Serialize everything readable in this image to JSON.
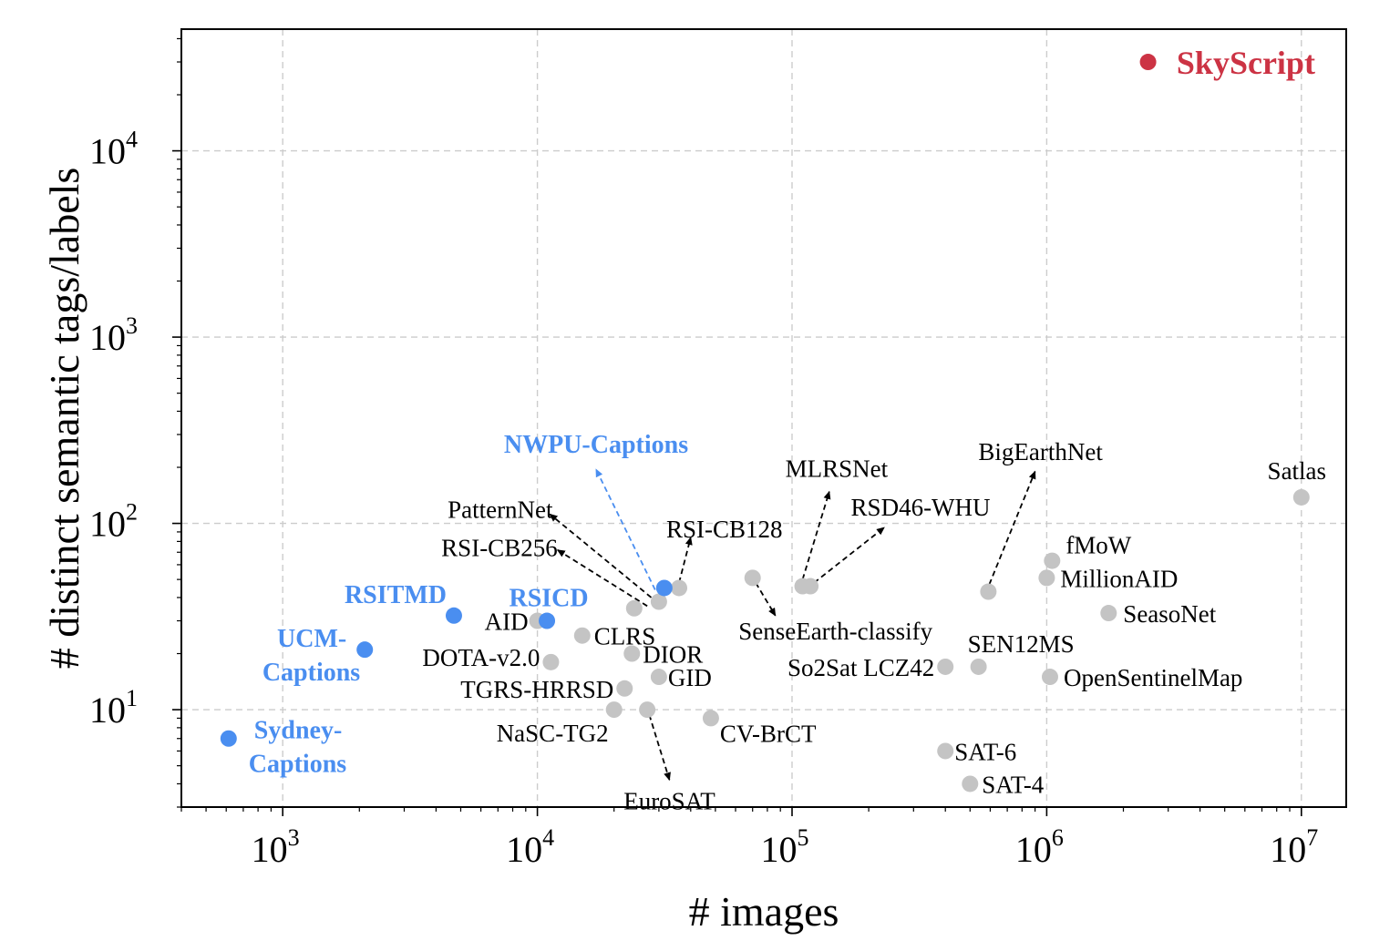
{
  "chart_data": {
    "type": "scatter",
    "title": "",
    "xlabel": "# images",
    "ylabel": "# distinct semantic tags/labels",
    "xscale": "log",
    "yscale": "log",
    "xlim": [
      400,
      15000000
    ],
    "ylim": [
      3,
      45000
    ],
    "grid": true,
    "x_ticks": [
      {
        "value": 1000,
        "base": "10",
        "exp": "3"
      },
      {
        "value": 10000,
        "base": "10",
        "exp": "4"
      },
      {
        "value": 100000,
        "base": "10",
        "exp": "5"
      },
      {
        "value": 1000000,
        "base": "10",
        "exp": "6"
      },
      {
        "value": 10000000,
        "base": "10",
        "exp": "7"
      }
    ],
    "y_ticks": [
      {
        "value": 10,
        "base": "10",
        "exp": "1"
      },
      {
        "value": 100,
        "base": "10",
        "exp": "2"
      },
      {
        "value": 1000,
        "base": "10",
        "exp": "3"
      },
      {
        "value": 10000,
        "base": "10",
        "exp": "4"
      }
    ],
    "colors": {
      "gray": "#c4c4c4",
      "blue": "#4a8ef0",
      "red": "#cc3344"
    },
    "points": [
      {
        "x": 2500000,
        "y": 30000,
        "group": "red"
      },
      {
        "x": 10000000,
        "y": 138,
        "group": "gray"
      },
      {
        "x": 1050000,
        "y": 63,
        "group": "gray"
      },
      {
        "x": 1000000,
        "y": 51,
        "group": "gray"
      },
      {
        "x": 1750000,
        "y": 33,
        "group": "gray"
      },
      {
        "x": 1030000,
        "y": 15,
        "group": "gray"
      },
      {
        "x": 590000,
        "y": 43,
        "group": "gray"
      },
      {
        "x": 540000,
        "y": 17,
        "group": "gray"
      },
      {
        "x": 400000,
        "y": 17,
        "group": "gray"
      },
      {
        "x": 400000,
        "y": 6,
        "group": "gray"
      },
      {
        "x": 500000,
        "y": 4,
        "group": "gray"
      },
      {
        "x": 110000,
        "y": 46,
        "group": "gray"
      },
      {
        "x": 118000,
        "y": 46,
        "group": "gray"
      },
      {
        "x": 70000,
        "y": 51,
        "group": "gray"
      },
      {
        "x": 48000,
        "y": 9,
        "group": "gray"
      },
      {
        "x": 36000,
        "y": 45,
        "group": "gray"
      },
      {
        "x": 30000,
        "y": 38,
        "group": "gray"
      },
      {
        "x": 24000,
        "y": 35,
        "group": "gray"
      },
      {
        "x": 15000,
        "y": 25,
        "group": "gray"
      },
      {
        "x": 23500,
        "y": 20,
        "group": "gray"
      },
      {
        "x": 30000,
        "y": 15,
        "group": "gray"
      },
      {
        "x": 22000,
        "y": 13,
        "group": "gray"
      },
      {
        "x": 20000,
        "y": 10,
        "group": "gray"
      },
      {
        "x": 27000,
        "y": 10,
        "group": "gray"
      },
      {
        "x": 10000,
        "y": 30,
        "group": "gray"
      },
      {
        "x": 11300,
        "y": 18,
        "group": "gray"
      },
      {
        "x": 31500,
        "y": 45,
        "group": "blue"
      },
      {
        "x": 10900,
        "y": 30,
        "group": "blue"
      },
      {
        "x": 4700,
        "y": 32,
        "group": "blue"
      },
      {
        "x": 2100,
        "y": 21,
        "group": "blue"
      },
      {
        "x": 613,
        "y": 7,
        "group": "blue"
      }
    ],
    "labels": [
      {
        "text": "SkyScript",
        "style": "feat",
        "x": 2700000,
        "y": 30000,
        "anchor": "start",
        "dx": 22,
        "dy": 13
      },
      {
        "text": "Satlas",
        "style": "plain",
        "x": 10000000,
        "y": 138,
        "anchor": "middle",
        "dx": -5,
        "dy": -20
      },
      {
        "text": "fMoW",
        "style": "plain",
        "x": 1050000,
        "y": 63,
        "anchor": "start",
        "dx": 15,
        "dy": -8
      },
      {
        "text": "MillionAID",
        "style": "plain",
        "x": 1000000,
        "y": 51,
        "anchor": "start",
        "dx": 15,
        "dy": 10
      },
      {
        "text": "SeasoNet",
        "style": "plain",
        "x": 1750000,
        "y": 33,
        "anchor": "start",
        "dx": 16,
        "dy": 10
      },
      {
        "text": "OpenSentinelMap",
        "style": "plain",
        "x": 1030000,
        "y": 15,
        "anchor": "start",
        "dx": 15,
        "dy": 10
      },
      {
        "text": "SEN12MS",
        "style": "plain",
        "x": 540000,
        "y": 17,
        "anchor": "start",
        "dx": -12,
        "dy": -16
      },
      {
        "text": "So2Sat LCZ42",
        "style": "plain",
        "x": 400000,
        "y": 17,
        "anchor": "end",
        "dx": -12,
        "dy": 10
      },
      {
        "text": "SAT-6",
        "style": "plain",
        "x": 400000,
        "y": 6,
        "anchor": "start",
        "dx": 10,
        "dy": 10
      },
      {
        "text": "SAT-4",
        "style": "plain",
        "x": 500000,
        "y": 4,
        "anchor": "start",
        "dx": 13,
        "dy": 10
      },
      {
        "text": "BigEarthNet",
        "style": "plain",
        "x": 900000,
        "y": 185,
        "anchor": "middle",
        "dx": 6,
        "dy": -15
      },
      {
        "text": "MLRSNet",
        "style": "plain",
        "x": 140000,
        "y": 145,
        "anchor": "middle",
        "dx": 8,
        "dy": -18
      },
      {
        "text": "RSD46-WHU",
        "style": "plain",
        "x": 230000,
        "y": 92,
        "anchor": "middle",
        "dx": 40,
        "dy": -16
      },
      {
        "text": "SenseEarth-classify",
        "style": "plain",
        "x": 86000,
        "y": 32,
        "anchor": "middle",
        "dx": 66,
        "dy": 26
      },
      {
        "text": "CV-BrCT",
        "style": "plain",
        "x": 48000,
        "y": 9,
        "anchor": "start",
        "dx": 10,
        "dy": 26
      },
      {
        "text": "RSI-CB128",
        "style": "plain",
        "x": 40000,
        "y": 82,
        "anchor": "middle",
        "dx": 37,
        "dy": -2
      },
      {
        "text": "PatternNet",
        "style": "plain",
        "x": 11500,
        "y": 112,
        "anchor": "end",
        "dx": 0,
        "dy": 4
      },
      {
        "text": "RSI-CB256",
        "style": "plain",
        "x": 12000,
        "y": 70,
        "anchor": "end",
        "dx": 0,
        "dy": 4
      },
      {
        "text": "CLRS",
        "style": "plain",
        "x": 15000,
        "y": 25,
        "anchor": "start",
        "dx": 13,
        "dy": 10
      },
      {
        "text": "DIOR",
        "style": "plain",
        "x": 23500,
        "y": 20,
        "anchor": "start",
        "dx": 12,
        "dy": 10
      },
      {
        "text": "GID",
        "style": "plain",
        "x": 30000,
        "y": 15,
        "anchor": "start",
        "dx": 10,
        "dy": 10
      },
      {
        "text": "TGRS-HRRSD",
        "style": "plain",
        "x": 22000,
        "y": 13,
        "anchor": "end",
        "dx": -12,
        "dy": 10
      },
      {
        "text": "NaSC-TG2",
        "style": "plain",
        "x": 20000,
        "y": 10,
        "anchor": "end",
        "dx": -6,
        "dy": 35
      },
      {
        "text": "EuroSAT",
        "style": "plain",
        "x": 33000,
        "y": 4.1,
        "anchor": "middle",
        "dx": 0,
        "dy": 30
      },
      {
        "text": "AID",
        "style": "plain",
        "x": 10000,
        "y": 30,
        "anchor": "end",
        "dx": -10,
        "dy": 10
      },
      {
        "text": "DOTA-v2.0",
        "style": "plain",
        "x": 11300,
        "y": 18,
        "anchor": "end",
        "dx": -12,
        "dy": 4
      },
      {
        "text": "NWPU-Captions",
        "style": "hl",
        "x": 17000,
        "y": 205,
        "anchor": "middle",
        "dx": 0,
        "dy": -14
      },
      {
        "text": "RSICD",
        "style": "hl",
        "x": 10900,
        "y": 30,
        "anchor": "middle",
        "dx": 2,
        "dy": -16
      },
      {
        "text": "RSITMD",
        "style": "hl",
        "x": 4700,
        "y": 32,
        "anchor": "middle",
        "dx": -64,
        "dy": -14
      },
      {
        "text": "UCM-",
        "style": "hl",
        "x": 2100,
        "y": 21,
        "anchor": "end",
        "dx": -20,
        "dy": -3
      },
      {
        "text": "Captions",
        "style": "hl",
        "x": 2100,
        "y": 21,
        "anchor": "end",
        "dx": -5,
        "dy": 34
      },
      {
        "text": "Sydney-",
        "style": "hl",
        "x": 613,
        "y": 7,
        "anchor": "start",
        "dx": 28,
        "dy": 0
      },
      {
        "text": "Captions",
        "style": "hl",
        "x": 613,
        "y": 7,
        "anchor": "start",
        "dx": 22,
        "dy": 37
      }
    ],
    "arrows": [
      {
        "x1": 29000,
        "y1": 44,
        "x2": 17000,
        "y2": 195,
        "color": "blue"
      },
      {
        "x1": 28000,
        "y1": 40,
        "x2": 11200,
        "y2": 112,
        "color": "black"
      },
      {
        "x1": 27000,
        "y1": 36,
        "x2": 12000,
        "y2": 72,
        "color": "black"
      },
      {
        "x1": 36000,
        "y1": 48,
        "x2": 40000,
        "y2": 84,
        "color": "black"
      },
      {
        "x1": 72000,
        "y1": 48,
        "x2": 86000,
        "y2": 32,
        "color": "black"
      },
      {
        "x1": 110000,
        "y1": 50,
        "x2": 140000,
        "y2": 148,
        "color": "black"
      },
      {
        "x1": 122000,
        "y1": 48,
        "x2": 230000,
        "y2": 95,
        "color": "black"
      },
      {
        "x1": 595000,
        "y1": 47,
        "x2": 900000,
        "y2": 190,
        "color": "black"
      },
      {
        "x1": 27500,
        "y1": 9.4,
        "x2": 33000,
        "y2": 4.2,
        "color": "black"
      }
    ]
  }
}
